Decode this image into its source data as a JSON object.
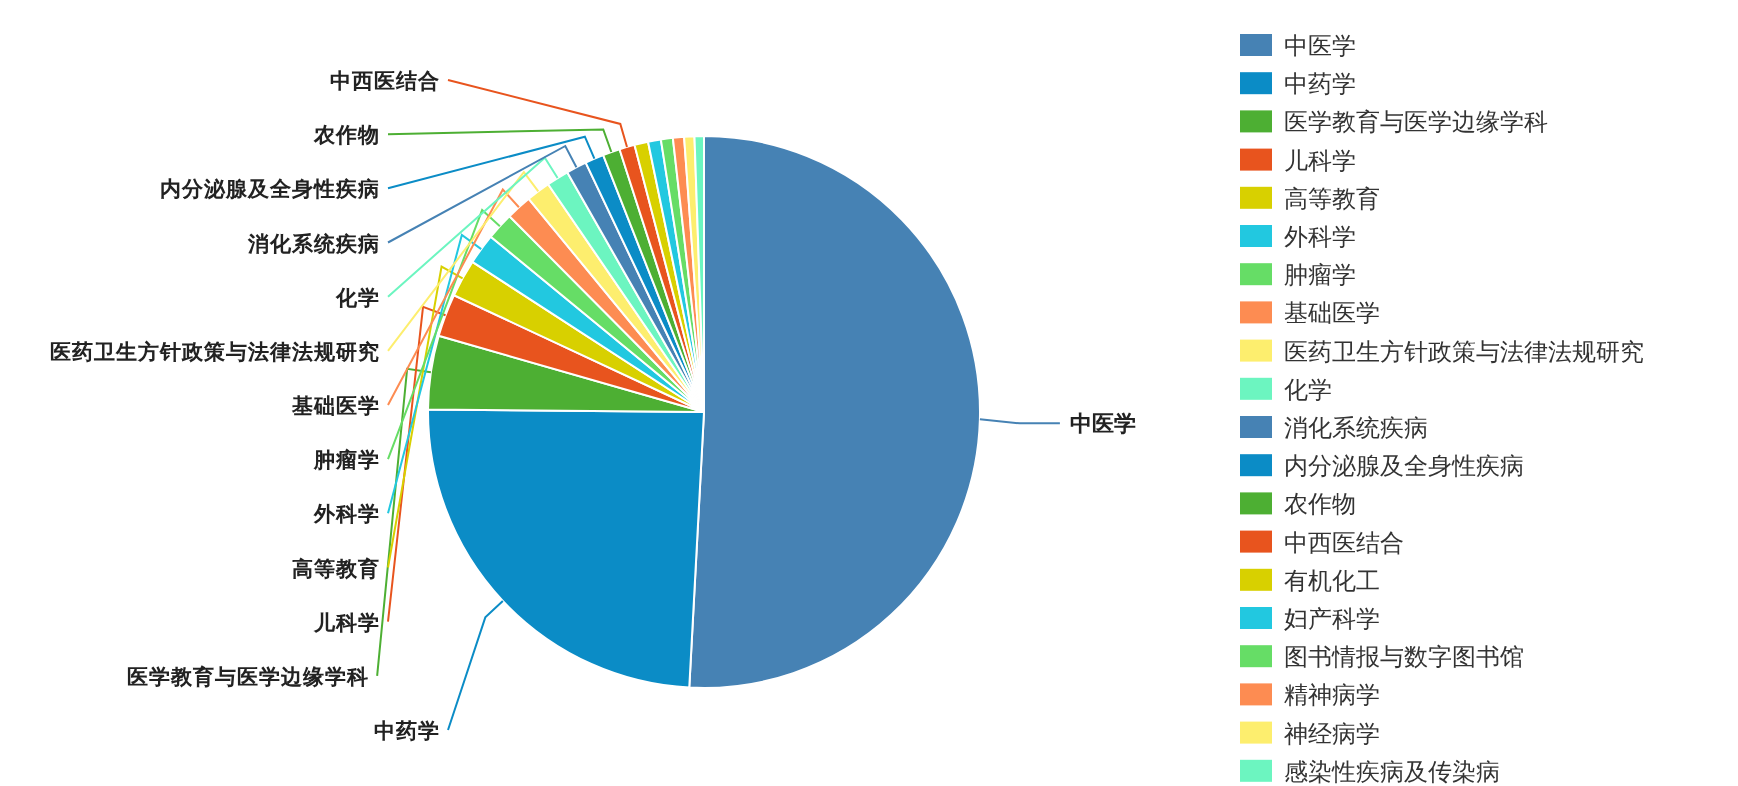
{
  "chart_data": {
    "type": "pie",
    "legend": "right",
    "categories": [
      "中医学",
      "中药学",
      "医学教育与医学边缘学科",
      "儿科学",
      "高等教育",
      "外科学",
      "肿瘤学",
      "基础医学",
      "医药卫生方针政策与法律法规研究",
      "化学",
      "消化系统疾病",
      "内分泌腺及全身性疾病",
      "农作物",
      "中西医结合",
      "有机化工",
      "妇产科学",
      "图书情报与数字图书馆",
      "精神病学",
      "神经病学",
      "感染性疾病及传染病"
    ],
    "values": [
      50.85,
      24.3,
      4.3,
      2.5,
      2.2,
      1.8,
      1.6,
      1.5,
      1.4,
      1.3,
      1.2,
      1.1,
      1.0,
      0.9,
      0.8,
      0.75,
      0.7,
      0.65,
      0.6,
      0.55
    ],
    "colors": [
      "#4682b4",
      "#0b8cc6",
      "#4daf33",
      "#e8541e",
      "#d8d000",
      "#22c8e0",
      "#66dd66",
      "#fd8c52",
      "#fdee6e",
      "#6cf5c0",
      "#4682b4",
      "#0b8cc6",
      "#4daf33",
      "#e8541e",
      "#d8d000",
      "#22c8e0",
      "#66dd66",
      "#fd8c52",
      "#fdee6e",
      "#6cf5c0"
    ]
  }
}
